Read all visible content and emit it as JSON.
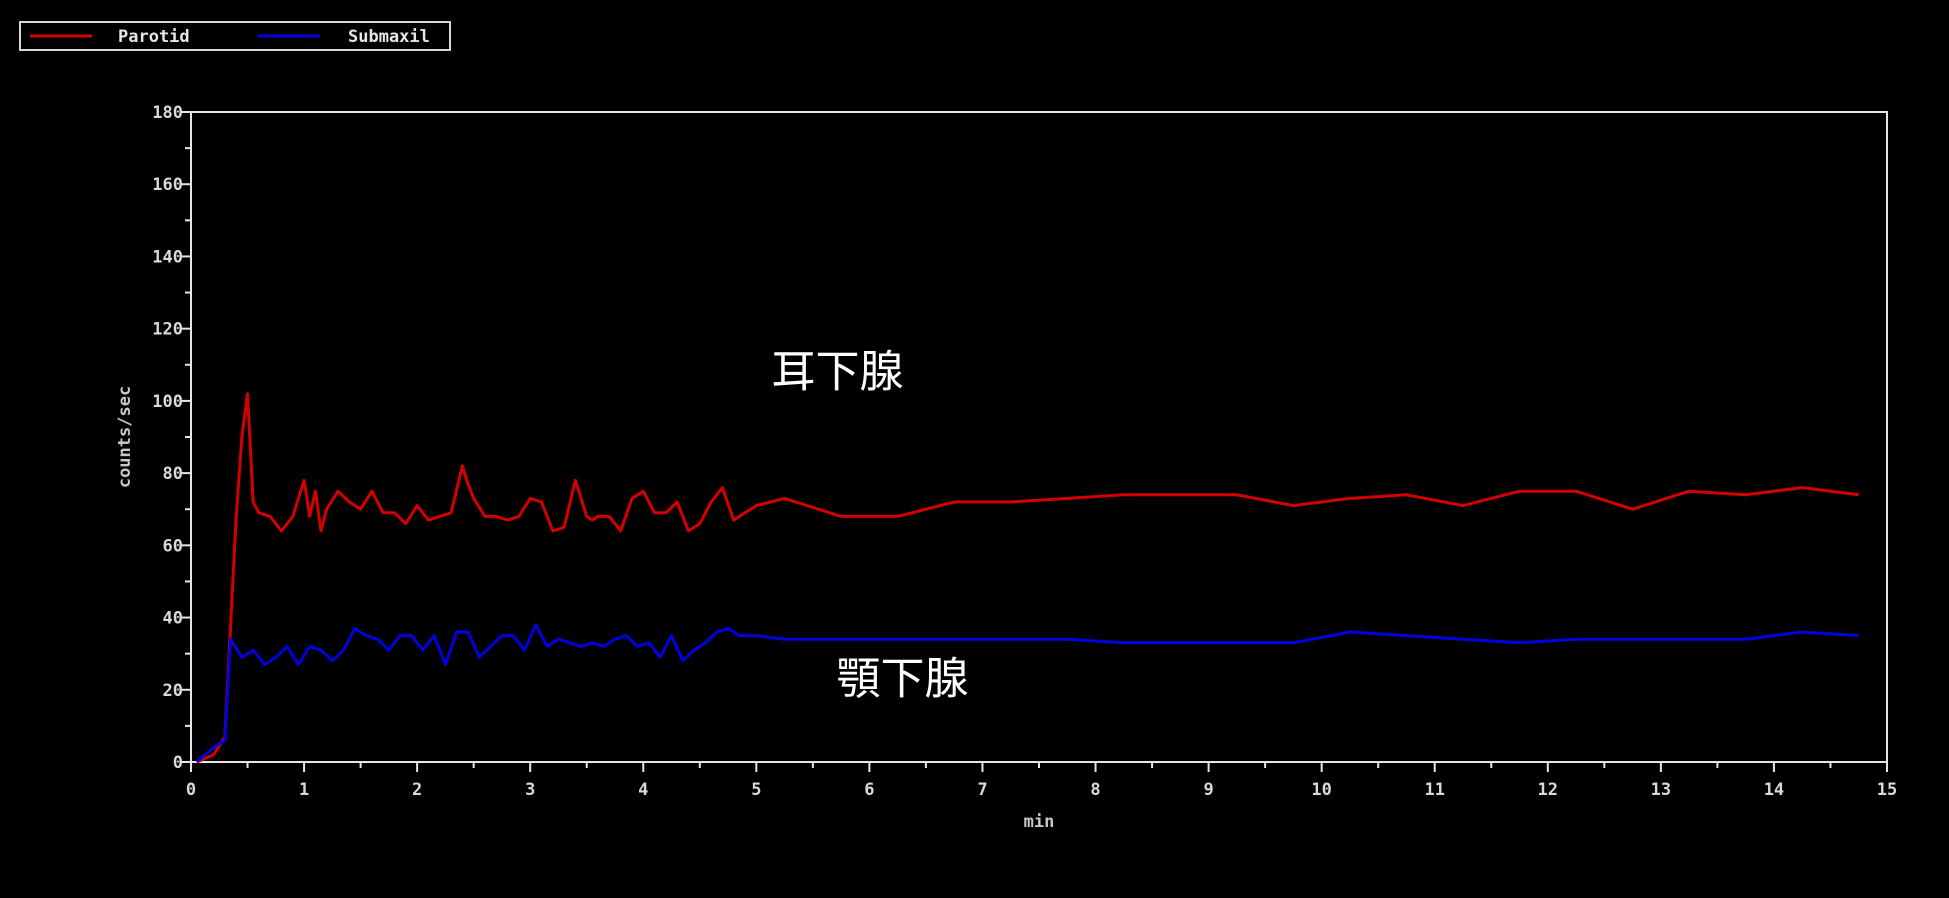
{
  "chart_data": {
    "type": "line",
    "xlabel": "min",
    "ylabel": "counts/sec",
    "xlim": [
      0,
      15
    ],
    "ylim": [
      0,
      180
    ],
    "x_ticks": [
      "0",
      "1",
      "2",
      "3",
      "4",
      "5",
      "6",
      "7",
      "8",
      "9",
      "10",
      "11",
      "12",
      "13",
      "14",
      "15"
    ],
    "y_ticks": [
      "0",
      "20",
      "40",
      "60",
      "80",
      "100",
      "120",
      "140",
      "160",
      "180"
    ],
    "grid": false,
    "legend_position": "top-left",
    "annotations": [
      {
        "text": "耳下腺",
        "x": 5.4,
        "y": 104
      },
      {
        "text": "顎下腺",
        "x": 5.4,
        "y": 19
      }
    ],
    "series": [
      {
        "name": "Parotid",
        "color": "#d40000",
        "x": [
          0.05,
          0.2,
          0.3,
          0.4,
          0.45,
          0.5,
          0.55,
          0.6,
          0.7,
          0.8,
          0.9,
          1.0,
          1.05,
          1.1,
          1.15,
          1.2,
          1.3,
          1.4,
          1.5,
          1.6,
          1.7,
          1.8,
          1.9,
          2.0,
          2.1,
          2.2,
          2.3,
          2.4,
          2.45,
          2.5,
          2.6,
          2.7,
          2.8,
          2.9,
          3.0,
          3.1,
          3.2,
          3.3,
          3.4,
          3.5,
          3.55,
          3.6,
          3.7,
          3.8,
          3.9,
          4.0,
          4.1,
          4.2,
          4.3,
          4.4,
          4.5,
          4.6,
          4.7,
          4.8,
          4.9,
          5.0,
          5.25,
          5.75,
          6.25,
          6.75,
          7.25,
          7.75,
          8.25,
          8.75,
          9.25,
          9.75,
          10.25,
          10.75,
          11.25,
          11.75,
          12.25,
          12.75,
          13.25,
          13.75,
          14.25,
          14.75
        ],
        "values": [
          0,
          2,
          7,
          68,
          90,
          102,
          72,
          69,
          68,
          64,
          68,
          78,
          68,
          75,
          64,
          70,
          75,
          72,
          70,
          75,
          69,
          69,
          66,
          71,
          67,
          68,
          69,
          82,
          77,
          73,
          68,
          68,
          67,
          68,
          73,
          72,
          64,
          65,
          78,
          68,
          67,
          68,
          68,
          64,
          73,
          75,
          69,
          69,
          72,
          64,
          66,
          72,
          76,
          67,
          69,
          71,
          73,
          68,
          68,
          72,
          72,
          73,
          74,
          74,
          74,
          71,
          73,
          74,
          71,
          75,
          75,
          70,
          75,
          74,
          76,
          74
        ]
      },
      {
        "name": "Submaxil",
        "color": "#0000e0",
        "x": [
          0.05,
          0.2,
          0.3,
          0.35,
          0.45,
          0.55,
          0.65,
          0.75,
          0.85,
          0.95,
          1.05,
          1.15,
          1.25,
          1.35,
          1.45,
          1.55,
          1.65,
          1.75,
          1.85,
          1.95,
          2.05,
          2.15,
          2.25,
          2.35,
          2.45,
          2.55,
          2.65,
          2.75,
          2.85,
          2.95,
          3.05,
          3.15,
          3.25,
          3.35,
          3.45,
          3.55,
          3.65,
          3.75,
          3.85,
          3.95,
          4.05,
          4.15,
          4.25,
          4.35,
          4.45,
          4.55,
          4.65,
          4.75,
          4.85,
          5.0,
          5.25,
          5.75,
          6.25,
          6.75,
          7.25,
          7.75,
          8.25,
          8.75,
          9.25,
          9.75,
          10.25,
          10.75,
          11.25,
          11.75,
          12.25,
          12.75,
          13.25,
          13.75,
          14.25,
          14.75
        ],
        "values": [
          0,
          4,
          6,
          34,
          29,
          31,
          27,
          29,
          32,
          27,
          32,
          31,
          28,
          31,
          37,
          35,
          34,
          31,
          35,
          35,
          31,
          35,
          27,
          36,
          36,
          29,
          32,
          35,
          35,
          31,
          38,
          32,
          34,
          33,
          32,
          33,
          32,
          34,
          35,
          32,
          33,
          29,
          35,
          28,
          31,
          33,
          36,
          37,
          35,
          35,
          34,
          34,
          34,
          34,
          34,
          34,
          33,
          33,
          33,
          33,
          36,
          35,
          34,
          33,
          34,
          34,
          34,
          34,
          36,
          35
        ]
      }
    ]
  }
}
